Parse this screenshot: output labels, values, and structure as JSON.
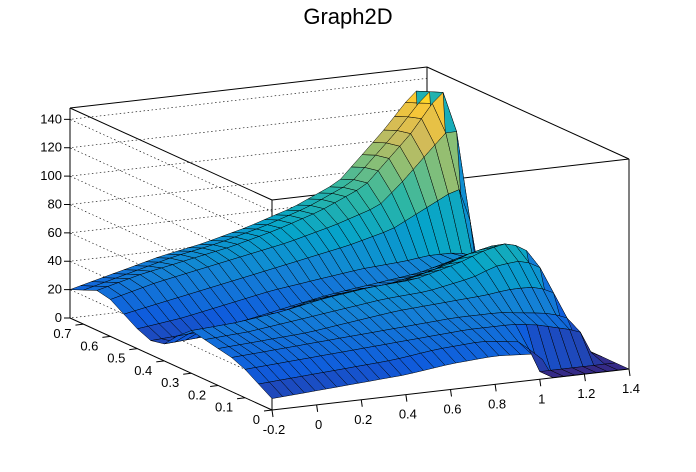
{
  "chart_data": {
    "type": "surface",
    "title": "Graph2D",
    "xlabel": "",
    "ylabel": "",
    "zlabel": "",
    "x_ticks": [
      "-0.2",
      "0",
      "0.2",
      "0.4",
      "0.6",
      "0.8",
      "1",
      "1.2",
      "1.4"
    ],
    "x_tick_values": [
      -0.2,
      0,
      0.2,
      0.4,
      0.6,
      0.8,
      1,
      1.2,
      1.4
    ],
    "y_ticks": [
      "0",
      "0.1",
      "0.2",
      "0.3",
      "0.4",
      "0.5",
      "0.6",
      "0.7"
    ],
    "y_tick_values": [
      0,
      0.1,
      0.2,
      0.3,
      0.4,
      0.5,
      0.6,
      0.7
    ],
    "z_ticks": [
      "0",
      "20",
      "40",
      "60",
      "80",
      "100",
      "120",
      "140"
    ],
    "z_tick_values": [
      0,
      20,
      40,
      60,
      80,
      100,
      120,
      140
    ],
    "xlim": [
      -0.2,
      1.4
    ],
    "ylim": [
      0,
      0.75
    ],
    "zlim": [
      0,
      148
    ],
    "grid": true,
    "colormap": [
      "#352a87",
      "#0f5cdd",
      "#1481d6",
      "#06a4ca",
      "#2eb7a4",
      "#87bf77",
      "#d1bb59",
      "#fec832",
      "#f9fb0e"
    ],
    "surface_y": [
      0,
      0.05,
      0.1,
      0.15,
      0.2,
      0.25,
      0.3,
      0.35,
      0.4,
      0.45,
      0.5,
      0.55,
      0.6,
      0.65,
      0.7,
      0.75
    ],
    "surface_rows": [
      {
        "x": [
          -0.2,
          0,
          0.2,
          0.4,
          0.6,
          0.8,
          1.0,
          1.05,
          1.1,
          1.2,
          1.3,
          1.4
        ],
        "z": [
          8,
          10,
          12,
          14,
          18,
          20,
          18,
          0,
          0,
          0,
          0,
          0
        ]
      },
      {
        "x": [
          -0.2,
          0,
          0.2,
          0.4,
          0.6,
          0.8,
          1.0,
          1.05,
          1.1,
          1.2,
          1.3,
          1.4
        ],
        "z": [
          14,
          16,
          18,
          20,
          24,
          26,
          22,
          0,
          0,
          0,
          0,
          0
        ]
      },
      {
        "x": [
          -0.2,
          0,
          0.2,
          0.4,
          0.6,
          0.8,
          1.0,
          1.1,
          1.2,
          1.3,
          1.35,
          1.4
        ],
        "z": [
          20,
          22,
          24,
          26,
          28,
          30,
          30,
          28,
          24,
          20,
          4,
          0
        ]
      },
      {
        "x": [
          -0.2,
          0,
          0.2,
          0.4,
          0.6,
          0.8,
          1.0,
          1.1,
          1.2,
          1.3,
          1.35,
          1.4
        ],
        "z": [
          24,
          26,
          28,
          30,
          32,
          34,
          34,
          32,
          30,
          26,
          6,
          0
        ]
      },
      {
        "x": [
          -0.2,
          0,
          0.2,
          0.4,
          0.6,
          0.8,
          1.0,
          1.1,
          1.2,
          1.3,
          1.35,
          1.4
        ],
        "z": [
          26,
          28,
          30,
          34,
          38,
          40,
          42,
          44,
          44,
          40,
          10,
          0
        ]
      },
      {
        "x": [
          -0.2,
          0,
          0.2,
          0.4,
          0.6,
          0.8,
          1.0,
          1.1,
          1.2,
          1.3,
          1.35,
          1.4
        ],
        "z": [
          28,
          30,
          34,
          38,
          42,
          44,
          50,
          56,
          58,
          54,
          14,
          0
        ]
      },
      {
        "x": [
          -0.2,
          0,
          0.2,
          0.4,
          0.6,
          0.8,
          1.0,
          1.1,
          1.2,
          1.3,
          1.35,
          1.4
        ],
        "z": [
          30,
          32,
          36,
          42,
          46,
          48,
          56,
          62,
          66,
          62,
          16,
          0
        ]
      },
      {
        "x": [
          -0.2,
          0,
          0.2,
          0.4,
          0.6,
          0.8,
          1.0,
          1.1,
          1.2,
          1.3,
          1.35,
          1.4
        ],
        "z": [
          22,
          24,
          28,
          36,
          40,
          42,
          50,
          56,
          60,
          58,
          14,
          0
        ]
      },
      {
        "x": [
          -0.2,
          0,
          0.2,
          0.4,
          0.6,
          0.8,
          1.0,
          1.1,
          1.2,
          1.3,
          1.35,
          1.4
        ],
        "z": [
          12,
          14,
          18,
          26,
          32,
          36,
          42,
          48,
          52,
          50,
          10,
          0
        ]
      },
      {
        "x": [
          -0.2,
          0,
          0.2,
          0.4,
          0.6,
          0.8,
          1.0,
          1.1,
          1.2,
          1.3,
          1.35,
          1.4
        ],
        "z": [
          10,
          12,
          16,
          22,
          28,
          32,
          36,
          40,
          44,
          42,
          8,
          0
        ]
      },
      {
        "x": [
          -0.2,
          0,
          0.2,
          0.4,
          0.6,
          0.8,
          1.0,
          1.1,
          1.2,
          1.3,
          1.35,
          1.4
        ],
        "z": [
          14,
          18,
          24,
          30,
          34,
          38,
          40,
          42,
          42,
          40,
          6,
          0
        ]
      },
      {
        "x": [
          -0.2,
          0,
          0.2,
          0.4,
          0.6,
          0.8,
          1.0,
          1.1,
          1.2,
          1.3,
          1.35,
          1.4
        ],
        "z": [
          20,
          26,
          32,
          38,
          44,
          50,
          58,
          66,
          74,
          82,
          60,
          0
        ]
      },
      {
        "x": [
          -0.2,
          0,
          0.2,
          0.4,
          0.6,
          0.8,
          1.0,
          1.1,
          1.2,
          1.3,
          1.35,
          1.4
        ],
        "z": [
          26,
          34,
          40,
          46,
          52,
          60,
          70,
          84,
          100,
          116,
          120,
          0
        ]
      },
      {
        "x": [
          -0.2,
          0,
          0.2,
          0.4,
          0.6,
          0.8,
          1.0,
          1.1,
          1.2,
          1.3,
          1.35,
          1.4
        ],
        "z": [
          28,
          36,
          42,
          48,
          56,
          66,
          80,
          96,
          112,
          132,
          144,
          0
        ]
      },
      {
        "x": [
          -0.2,
          0,
          0.2,
          0.4,
          0.6,
          0.8,
          1.0,
          1.1,
          1.2,
          1.3,
          1.35,
          1.4
        ],
        "z": [
          24,
          32,
          40,
          46,
          54,
          64,
          78,
          94,
          110,
          128,
          140,
          0
        ]
      },
      {
        "x": [
          -0.2,
          0,
          0.2,
          0.4,
          0.6,
          0.8,
          1.0,
          1.1,
          1.2,
          1.3,
          1.35,
          1.4
        ],
        "z": [
          20,
          28,
          36,
          42,
          50,
          60,
          74,
          90,
          106,
          124,
          136,
          0
        ]
      }
    ]
  }
}
